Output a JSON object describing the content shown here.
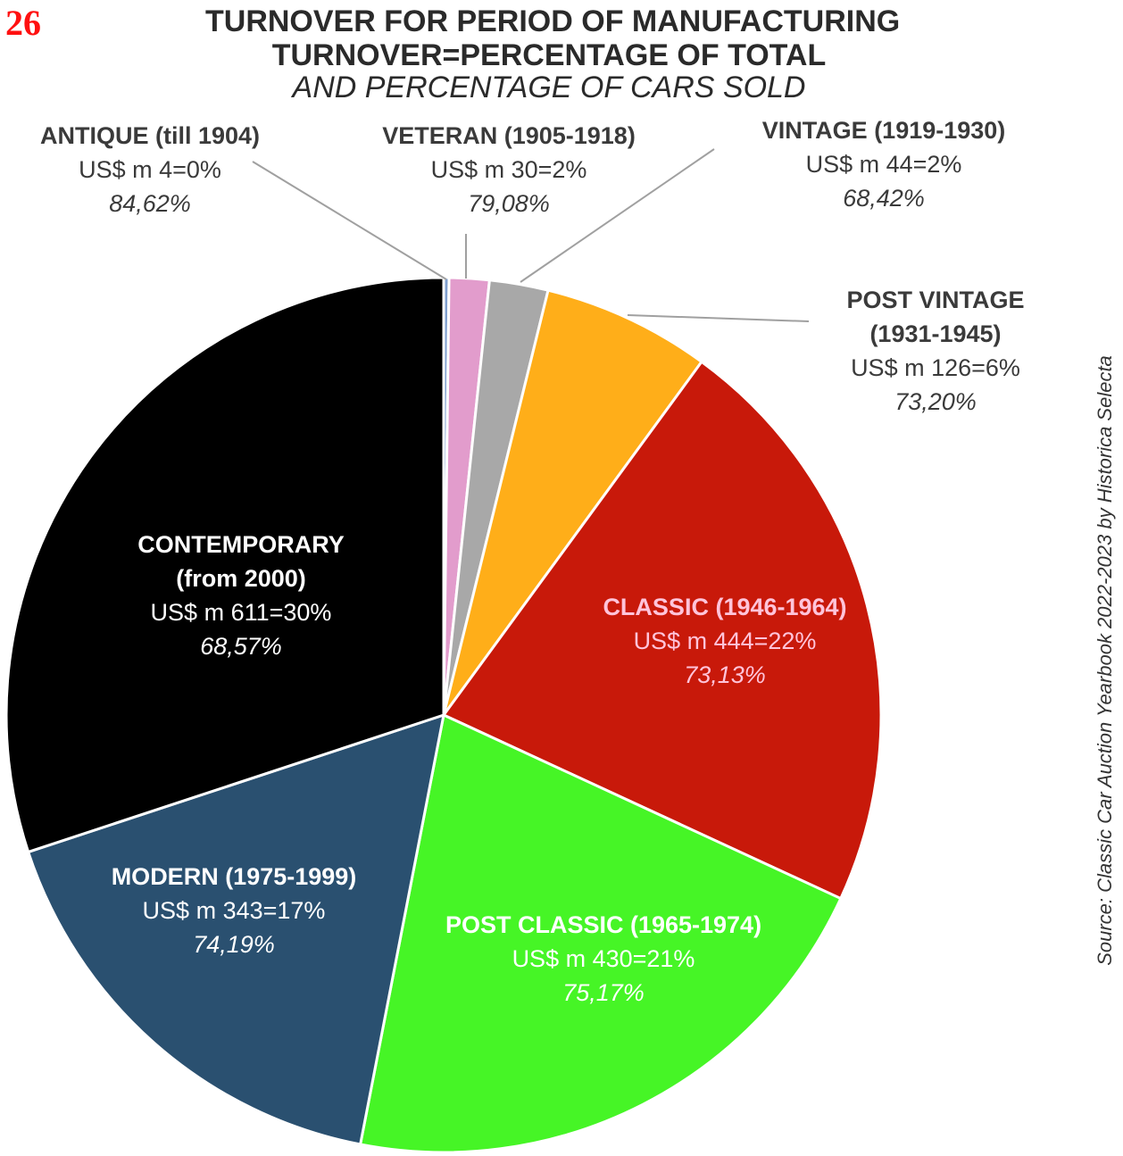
{
  "page_number": "26",
  "title_lines": [
    "TURNOVER FOR PERIOD OF MANUFACTURING",
    "TURNOVER=PERCENTAGE OF TOTAL",
    "AND PERCENTAGE OF CARS SOLD"
  ],
  "source": "Source: Classic Car Auction Yearbook 2022-2023 by Historica Selecta",
  "chart_data": {
    "type": "pie",
    "title": "TURNOVER FOR PERIOD OF MANUFACTURING",
    "slices": [
      {
        "name_lines": [
          "ANTIQUE (till 1904)"
        ],
        "turnover": 4,
        "value_text": "US$ m 4=0%",
        "pct_text": "84,62%",
        "color": "#7f9fcf"
      },
      {
        "name_lines": [
          "VETERAN (1905-1918)"
        ],
        "turnover": 30,
        "value_text": "US$ m 30=2%",
        "pct_text": "79,08%",
        "color": "#e29ccc"
      },
      {
        "name_lines": [
          "VINTAGE (1919-1930)"
        ],
        "turnover": 44,
        "value_text": "US$ m 44=2%",
        "pct_text": "68,42%",
        "color": "#a8a8a8"
      },
      {
        "name_lines": [
          "POST VINTAGE",
          "(1931-1945)"
        ],
        "turnover": 126,
        "value_text": "US$ m 126=6%",
        "pct_text": "73,20%",
        "color": "#ffae19"
      },
      {
        "name_lines": [
          "CLASSIC (1946-1964)"
        ],
        "turnover": 444,
        "value_text": "US$ m 444=22%",
        "pct_text": "73,13%",
        "color": "#c8190a"
      },
      {
        "name_lines": [
          "POST CLASSIC (1965-1974)"
        ],
        "turnover": 430,
        "value_text": "US$ m 430=21%",
        "pct_text": "75,17%",
        "color": "#46f526"
      },
      {
        "name_lines": [
          "MODERN (1975-1999)"
        ],
        "turnover": 343,
        "value_text": "US$ m 343=17%",
        "pct_text": "74,19%",
        "color": "#2a5070"
      },
      {
        "name_lines": [
          "CONTEMPORARY",
          "(from 2000)"
        ],
        "turnover": 611,
        "value_text": "US$ m 611=30%",
        "pct_text": "68,57%",
        "color": "#000000"
      }
    ]
  }
}
